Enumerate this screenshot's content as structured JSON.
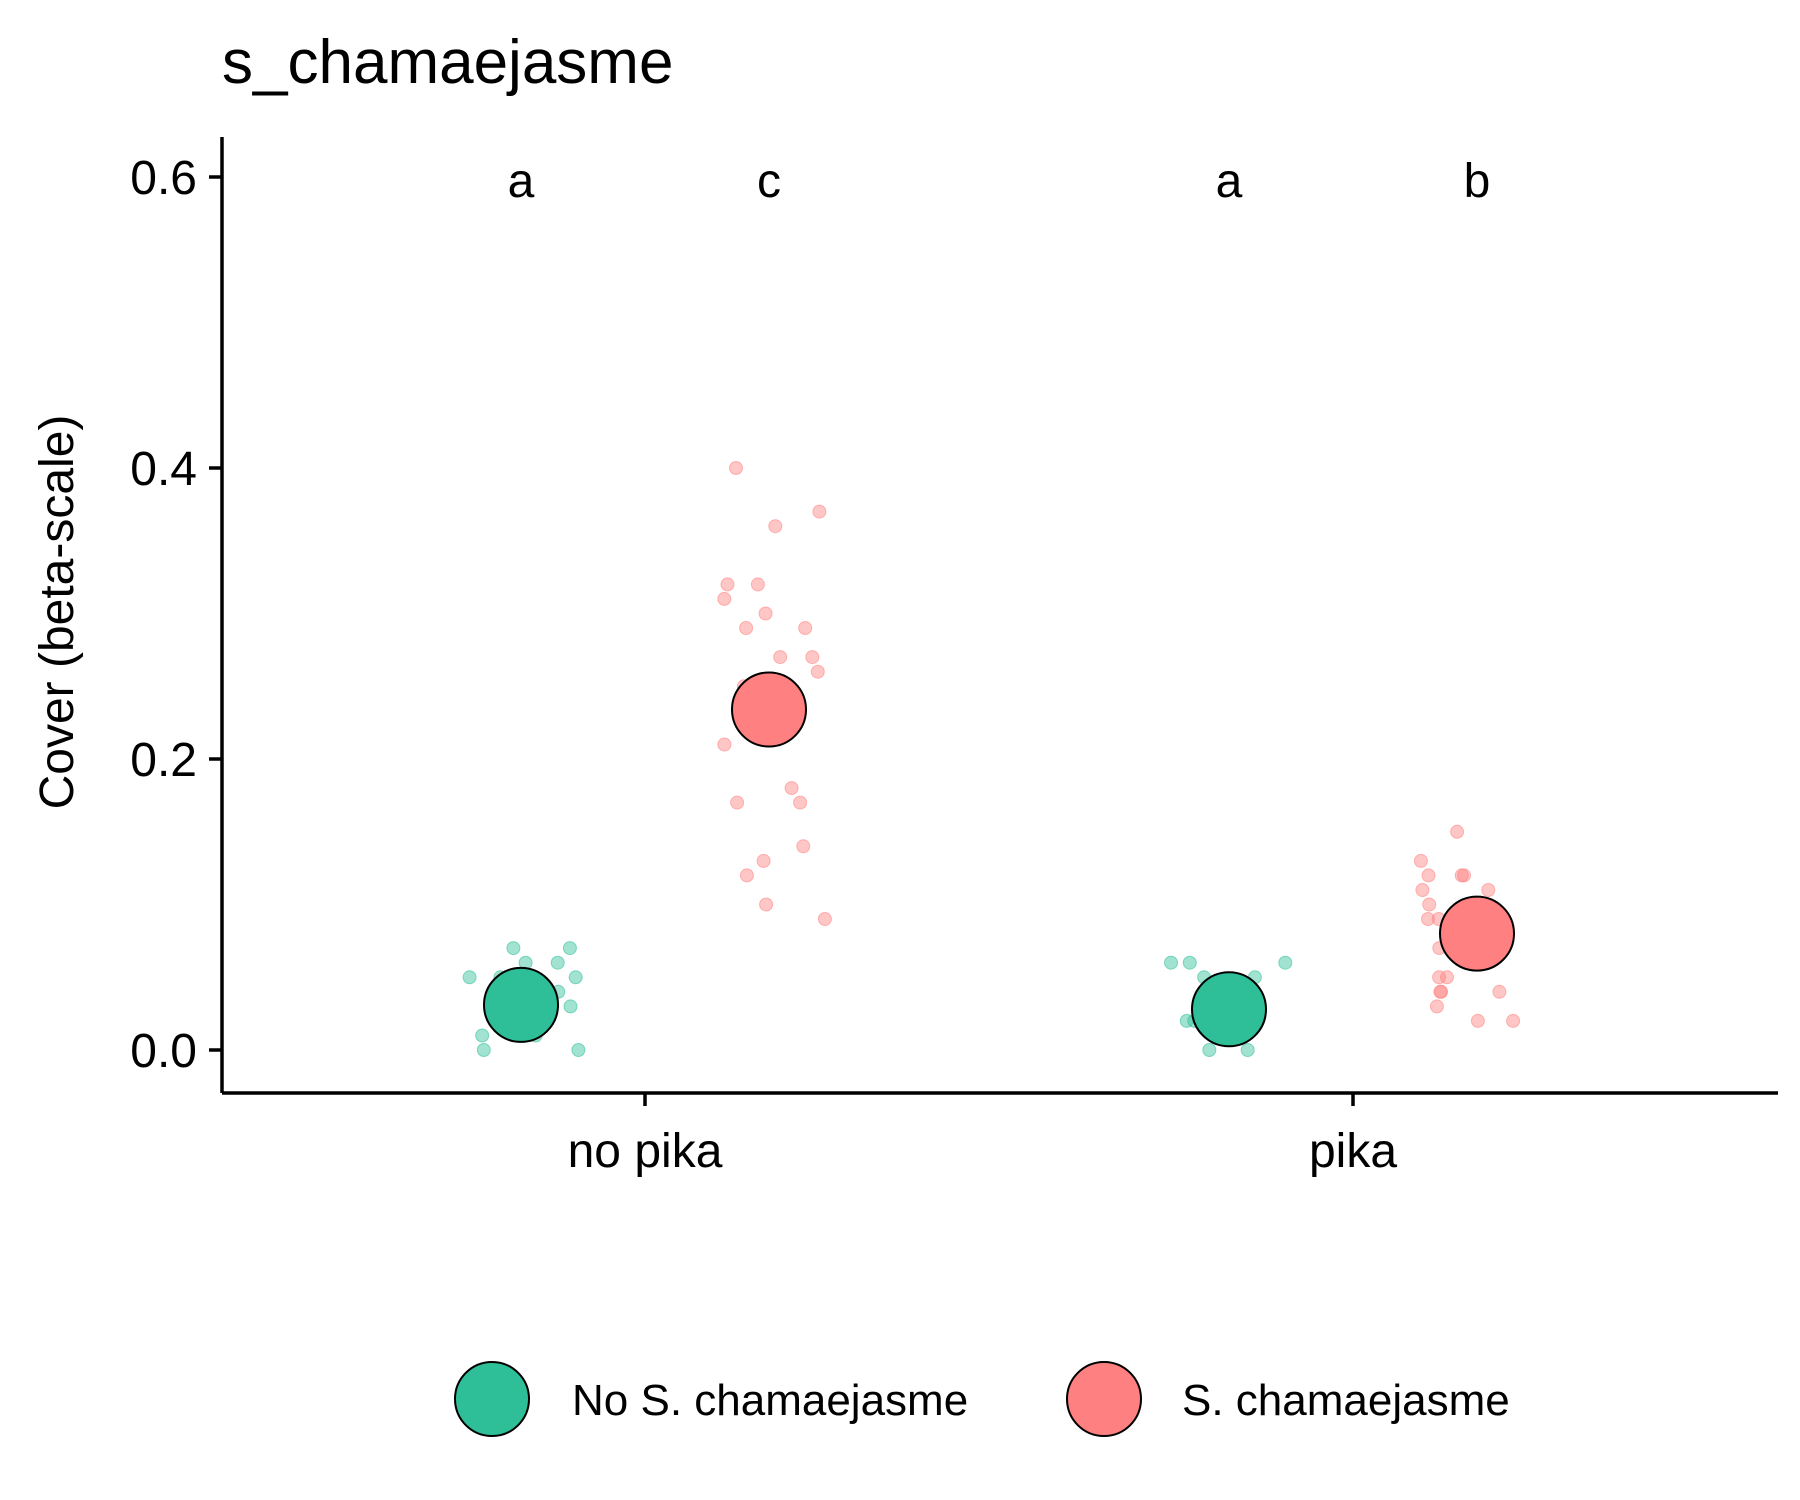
{
  "chart_data": {
    "type": "scatter",
    "title": "s_chamaejasme",
    "xlabel": "",
    "ylabel": "Cover (beta-scale)",
    "categories": [
      "no pika",
      "pika"
    ],
    "yticks": [
      "0.0",
      "0.2",
      "0.4",
      "0.6"
    ],
    "ylim": [
      -0.03,
      0.63
    ],
    "grid": false,
    "legend_position": "bottom",
    "series": [
      {
        "name": "No S. chamaejasme",
        "color": "#2EBF99",
        "means": [
          0.031,
          0.028
        ],
        "letters": [
          "a",
          "a"
        ],
        "points": [
          [
            0.07,
            0.05,
            0.02,
            0.02,
            0.04,
            0.01,
            0.01,
            0.03,
            0.06,
            0.05,
            0.04,
            0.0,
            0.0,
            0.06,
            0.05,
            0.03,
            0.07,
            0.02,
            0.05,
            0.03
          ],
          [
            0.03,
            0.0,
            0.03,
            0.02,
            0.0,
            0.03,
            0.06,
            0.06,
            0.04,
            0.06,
            0.05,
            0.05,
            0.02,
            0.02,
            0.01
          ]
        ]
      },
      {
        "name": "S. chamaejasme",
        "color": "#FF8080",
        "means": [
          0.234,
          0.08
        ],
        "letters": [
          "c",
          "b"
        ],
        "points": [
          [
            0.09,
            0.26,
            0.3,
            0.17,
            0.27,
            0.37,
            0.13,
            0.4,
            0.18,
            0.14,
            0.25,
            0.24,
            0.32,
            0.31,
            0.29,
            0.21,
            0.29,
            0.36,
            0.32,
            0.27,
            0.1,
            0.17,
            0.12
          ],
          [
            0.07,
            0.09,
            0.12,
            0.02,
            0.13,
            0.1,
            0.09,
            0.11,
            0.05,
            0.12,
            0.15,
            0.12,
            0.02,
            0.05,
            0.11,
            0.04,
            0.09,
            0.03,
            0.04,
            0.04
          ]
        ]
      }
    ]
  }
}
